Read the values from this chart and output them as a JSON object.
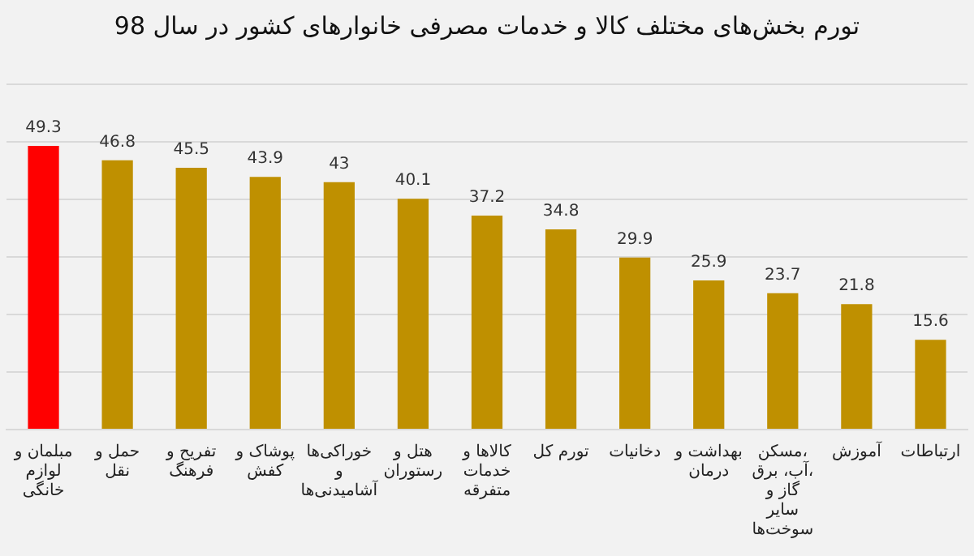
{
  "chart_data": {
    "type": "bar",
    "title": "تورم بخش‌های مختلف کالا و خدمات مصرفی خانوارهای کشور در سال 98",
    "categories": [
      "مبلمان و لوازم خانگی",
      "حمل و نقل",
      "تفریح و فرهنگ",
      "پوشاک و کفش",
      "خوراکی‌ها و آشامیدنی‌ها",
      "هتل و رستوران",
      "کالاها و خدمات متفرقه",
      "تورم کل",
      "دخانیات",
      "بهداشت و درمان",
      "مسکن، آب، برق، گاز و سایر سوخت‌ها",
      "آموزش",
      "ارتباطات"
    ],
    "values": [
      49.3,
      46.8,
      45.5,
      43.9,
      43,
      40.1,
      37.2,
      34.8,
      29.9,
      25.9,
      23.7,
      21.8,
      15.6
    ],
    "colors": [
      "#ff0000",
      "#bf9000",
      "#bf9000",
      "#bf9000",
      "#bf9000",
      "#bf9000",
      "#bf9000",
      "#bf9000",
      "#bf9000",
      "#bf9000",
      "#bf9000",
      "#bf9000",
      "#bf9000"
    ],
    "ylim": [
      0,
      60
    ],
    "yticks": [
      {
        "value": 0,
        "label": null
      },
      {
        "value": 10,
        "label": null
      },
      {
        "value": 20,
        "label": null
      },
      {
        "value": 30,
        "label": null
      },
      {
        "value": 40,
        "label": null
      },
      {
        "value": 50,
        "label": null
      },
      {
        "value": 60,
        "label": null
      }
    ],
    "grid": "y",
    "tick_labels": "x",
    "data_labels": true,
    "legend": false
  }
}
